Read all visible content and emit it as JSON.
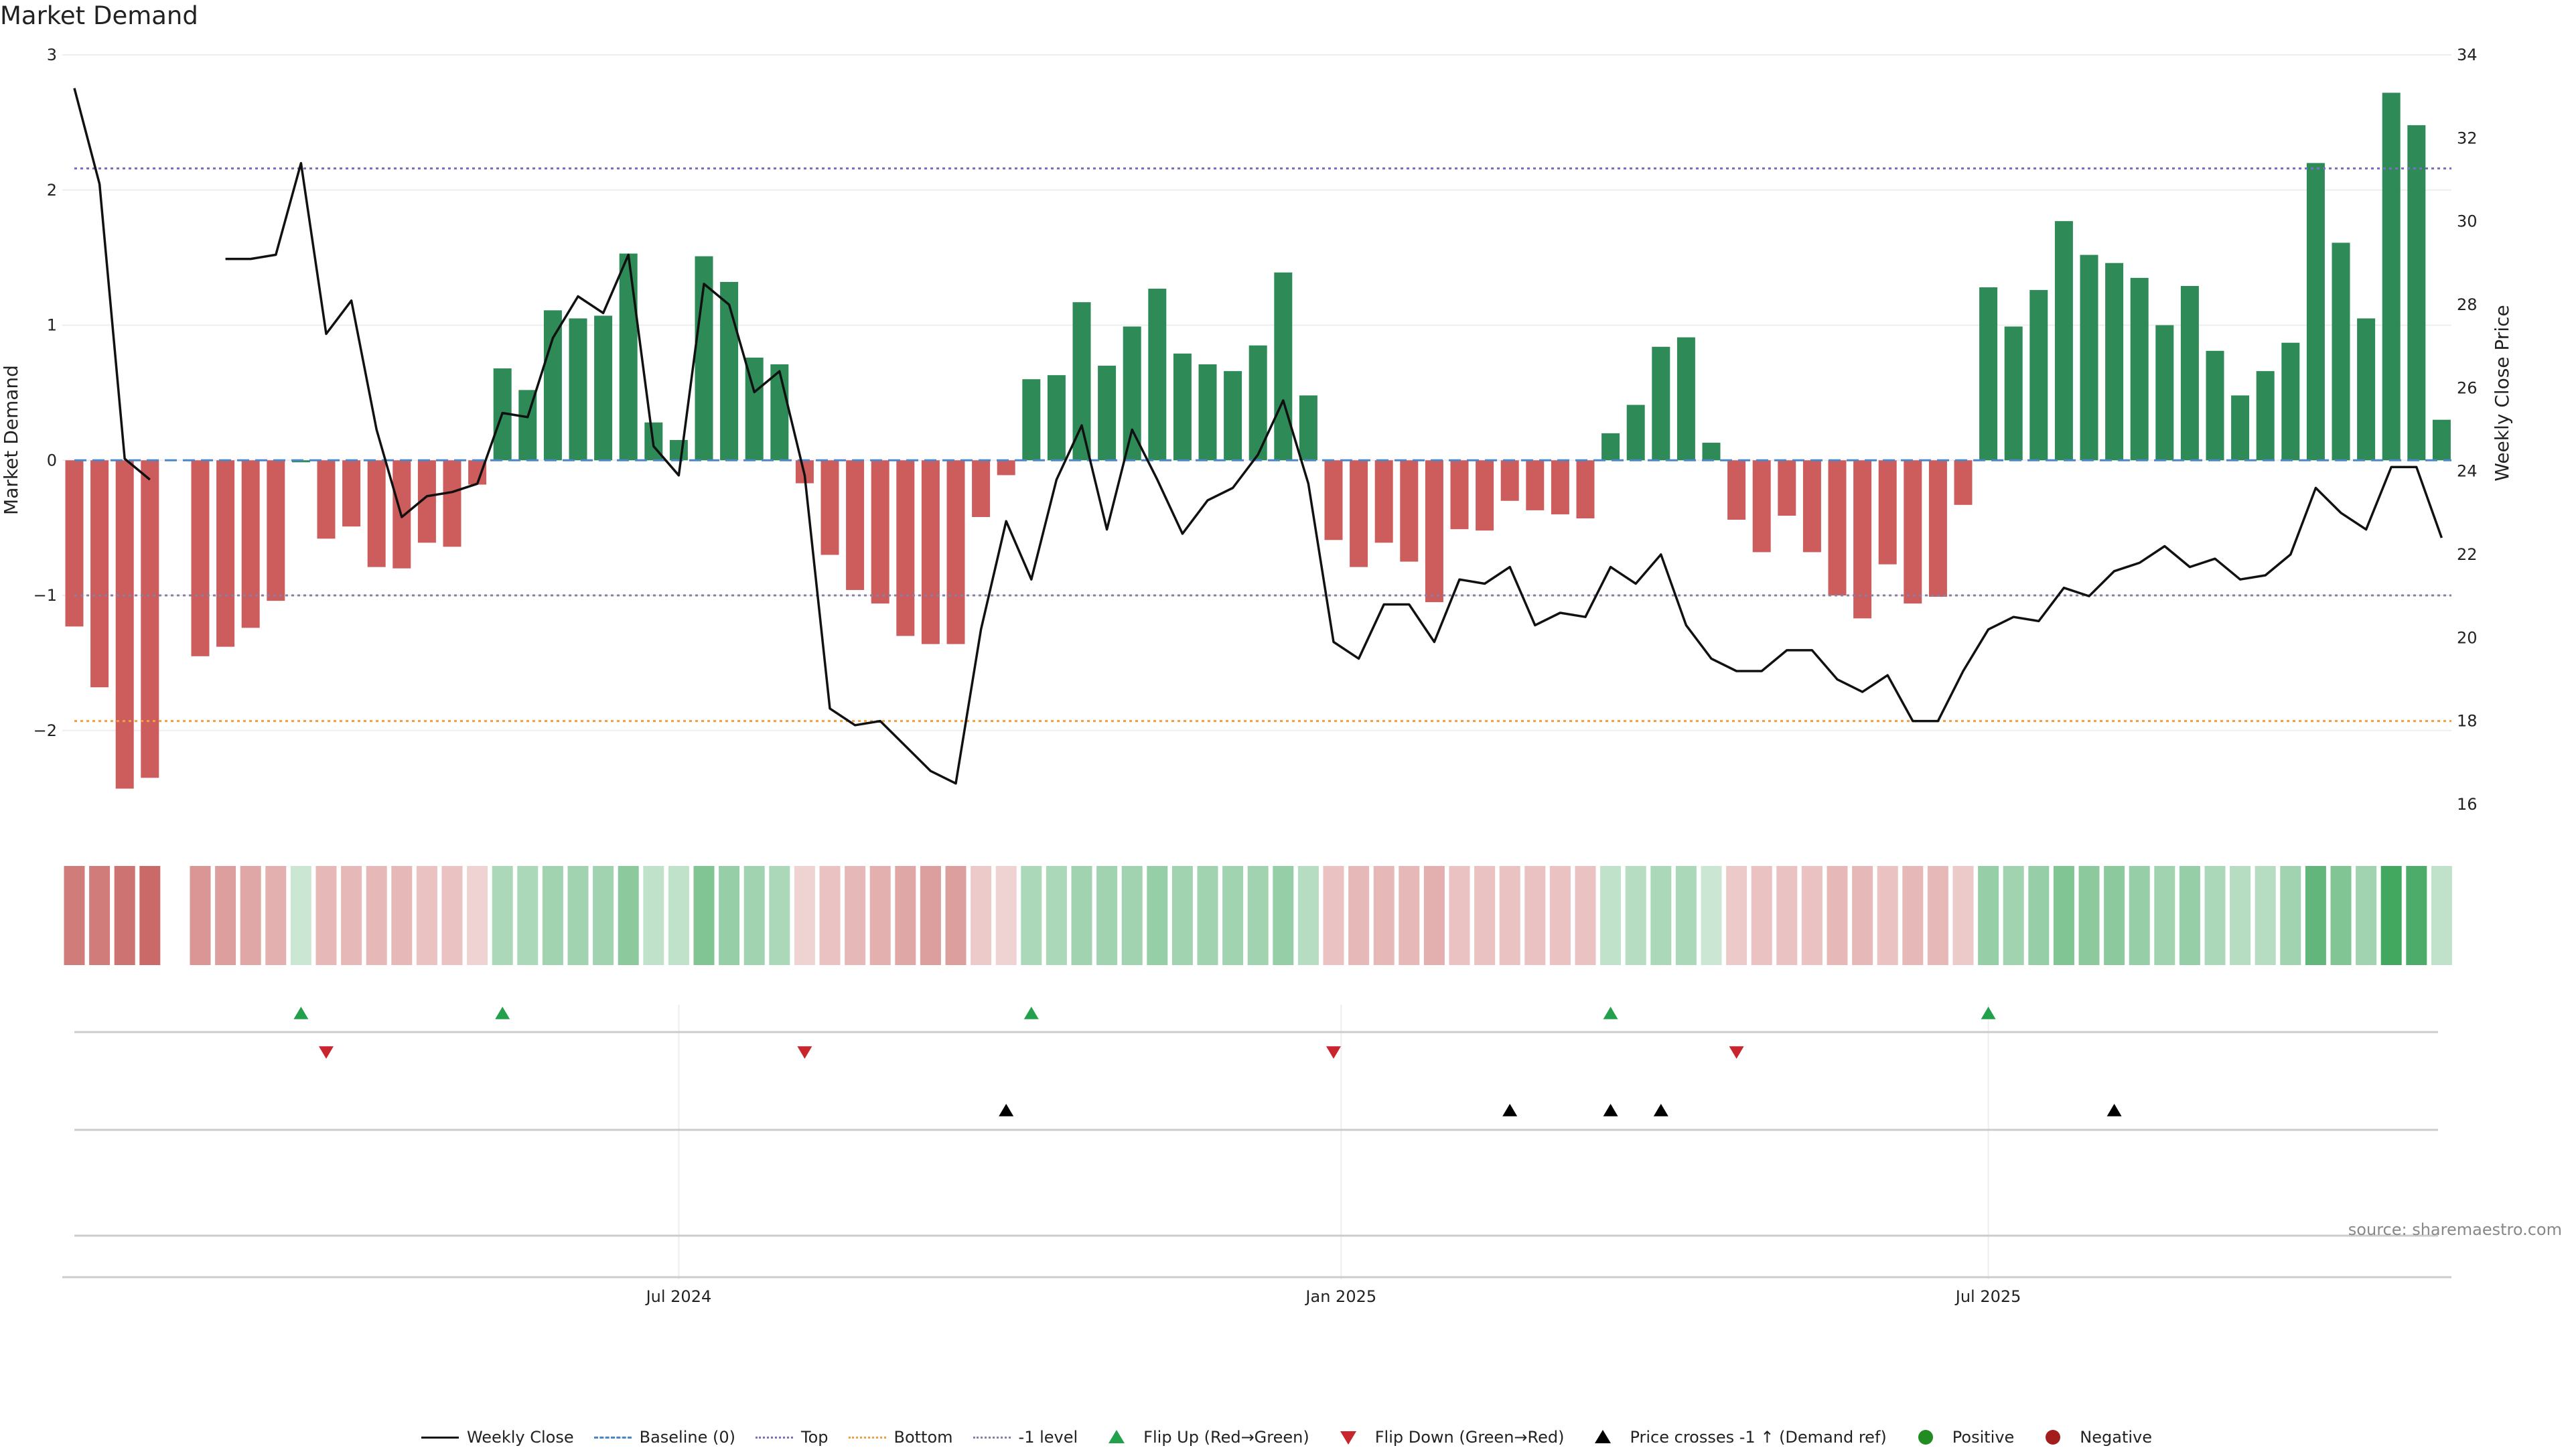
{
  "title": "Market Demand",
  "source": "source: sharemaestro.com",
  "colors": {
    "positive": "#2e8b57",
    "negative": "#cd5c5c",
    "close": "#111111",
    "baseline": "#4a86c8",
    "top": "#7b6fc4",
    "bottom": "#f0a040",
    "minus1": "#8a7fa0",
    "flip_up": "#22a04b",
    "flip_down": "#c9252d",
    "cross": "#000000",
    "pos_dot": "#228b22",
    "neg_dot": "#a31d1d"
  },
  "legend": [
    {
      "label": "Weekly Close",
      "symbol": "line-solid",
      "color": "#111111"
    },
    {
      "label": "Baseline (0)",
      "symbol": "line-dash",
      "color": "#4a86c8"
    },
    {
      "label": "Top",
      "symbol": "line-dot",
      "color": "#7b6fc4"
    },
    {
      "label": "Bottom",
      "symbol": "line-dot",
      "color": "#f0a040"
    },
    {
      "label": "-1 level",
      "symbol": "line-dot",
      "color": "#8a7fa0"
    },
    {
      "label": "Flip Up (Red→Green)",
      "symbol": "tri-up",
      "color": "#22a04b"
    },
    {
      "label": "Flip Down (Green→Red)",
      "symbol": "tri-down",
      "color": "#c9252d"
    },
    {
      "label": "Price crosses -1 ↑ (Demand ref)",
      "symbol": "tri-up",
      "color": "#000000"
    },
    {
      "label": "Positive",
      "symbol": "dot",
      "color": "#228b22"
    },
    {
      "label": "Negative",
      "symbol": "dot",
      "color": "#a31d1d"
    }
  ],
  "chart_data": {
    "type": "bar",
    "title": "Market Demand",
    "ylabel": "Market Demand",
    "y2label": "Weekly Close Price",
    "ylim": [
      -2.7,
      3.0
    ],
    "y2lim": [
      15.5,
      34.0
    ],
    "yticks": [
      3,
      2,
      1,
      0,
      -1,
      -2
    ],
    "ytick_labels": [
      "3",
      "2",
      "1",
      "0",
      "−1",
      "−2"
    ],
    "y2ticks": [
      34,
      32,
      30,
      28,
      26,
      24,
      22,
      20,
      18,
      16
    ],
    "y2tick_labels": [
      "34",
      "32",
      "30",
      "28",
      "26",
      "24",
      "22",
      "20",
      "18",
      "16"
    ],
    "xticks": [
      {
        "index": 24,
        "label": "Jul 2024"
      },
      {
        "index": 50.3,
        "label": "Jan 2025"
      },
      {
        "index": 76,
        "label": "Jul 2025"
      }
    ],
    "reference_lines": {
      "baseline": 0,
      "top": 2.16,
      "bottom": -1.93,
      "minus1": -1.0
    },
    "demand": [
      -1.23,
      -1.68,
      -2.43,
      -2.35,
      null,
      -1.45,
      -1.38,
      -1.24,
      -1.04,
      0.0,
      -0.58,
      -0.49,
      -0.79,
      -0.8,
      -0.61,
      -0.64,
      -0.18,
      0.68,
      0.52,
      1.11,
      1.05,
      1.07,
      1.53,
      0.28,
      0.15,
      1.51,
      1.32,
      0.76,
      0.71,
      -0.17,
      -0.7,
      -0.96,
      -1.06,
      -1.3,
      -1.36,
      -1.36,
      -0.42,
      -0.11,
      0.6,
      0.63,
      1.17,
      0.7,
      0.99,
      1.27,
      0.79,
      0.71,
      0.66,
      0.85,
      1.39,
      0.48,
      -0.59,
      -0.79,
      -0.61,
      -0.75,
      -1.05,
      -0.51,
      -0.52,
      -0.3,
      -0.37,
      -0.4,
      -0.43,
      0.2,
      0.41,
      0.84,
      0.91,
      0.13,
      -0.44,
      -0.68,
      -0.41,
      -0.68,
      -1.0,
      -1.17,
      -0.77,
      -1.06,
      -1.01,
      -0.33,
      1.28,
      0.99,
      1.26,
      1.77,
      1.52,
      1.46,
      1.35,
      1.0,
      1.29,
      0.81,
      0.48,
      0.66,
      0.87,
      2.2,
      1.61,
      1.05,
      2.72,
      2.48,
      0.3
    ],
    "close": [
      33.2,
      30.9,
      24.3,
      23.8,
      null,
      null,
      29.1,
      29.1,
      29.2,
      31.4,
      27.3,
      28.1,
      25.0,
      22.9,
      23.4,
      23.5,
      23.7,
      25.4,
      25.3,
      27.2,
      28.2,
      27.8,
      29.2,
      24.6,
      23.9,
      28.5,
      28.0,
      25.9,
      26.4,
      23.9,
      18.3,
      17.9,
      18.0,
      17.4,
      16.8,
      16.5,
      20.2,
      22.8,
      21.4,
      23.8,
      25.1,
      22.6,
      25.0,
      23.8,
      22.5,
      23.3,
      23.6,
      24.4,
      25.7,
      23.7,
      19.9,
      19.5,
      20.8,
      20.8,
      19.9,
      21.4,
      21.3,
      21.7,
      20.3,
      20.6,
      20.5,
      21.7,
      21.3,
      22.0,
      20.3,
      19.5,
      19.2,
      19.2,
      19.7,
      19.7,
      19.0,
      18.7,
      19.1,
      18.0,
      18.0,
      19.2,
      20.2,
      20.5,
      20.4,
      21.2,
      21.0,
      21.6,
      21.8,
      22.2,
      21.7,
      21.9,
      21.4,
      21.5,
      22.0,
      23.6,
      23.0,
      22.6,
      24.1,
      24.1,
      22.4
    ],
    "heat_alpha": [
      0.75,
      0.75,
      0.8,
      0.85,
      null,
      0.6,
      0.55,
      0.5,
      0.45,
      0.25,
      0.4,
      0.4,
      0.4,
      0.4,
      0.35,
      0.35,
      0.25,
      0.4,
      0.4,
      0.45,
      0.45,
      0.45,
      0.55,
      0.3,
      0.3,
      0.6,
      0.5,
      0.45,
      0.4,
      0.25,
      0.35,
      0.4,
      0.45,
      0.5,
      0.55,
      0.55,
      0.3,
      0.25,
      0.4,
      0.4,
      0.45,
      0.45,
      0.45,
      0.5,
      0.45,
      0.45,
      0.45,
      0.45,
      0.5,
      0.35,
      0.35,
      0.4,
      0.4,
      0.4,
      0.45,
      0.35,
      0.35,
      0.35,
      0.35,
      0.35,
      0.35,
      0.3,
      0.35,
      0.4,
      0.4,
      0.25,
      0.3,
      0.35,
      0.35,
      0.35,
      0.4,
      0.4,
      0.35,
      0.4,
      0.4,
      0.3,
      0.5,
      0.45,
      0.5,
      0.6,
      0.55,
      0.55,
      0.5,
      0.45,
      0.5,
      0.4,
      0.35,
      0.35,
      0.45,
      0.75,
      0.6,
      0.45,
      0.9,
      0.85,
      0.3
    ],
    "flip_up": [
      9,
      17,
      38,
      61,
      76
    ],
    "flip_down": [
      10,
      29,
      50,
      66
    ],
    "price_cross_up": [
      37,
      57,
      61,
      63,
      81
    ]
  }
}
